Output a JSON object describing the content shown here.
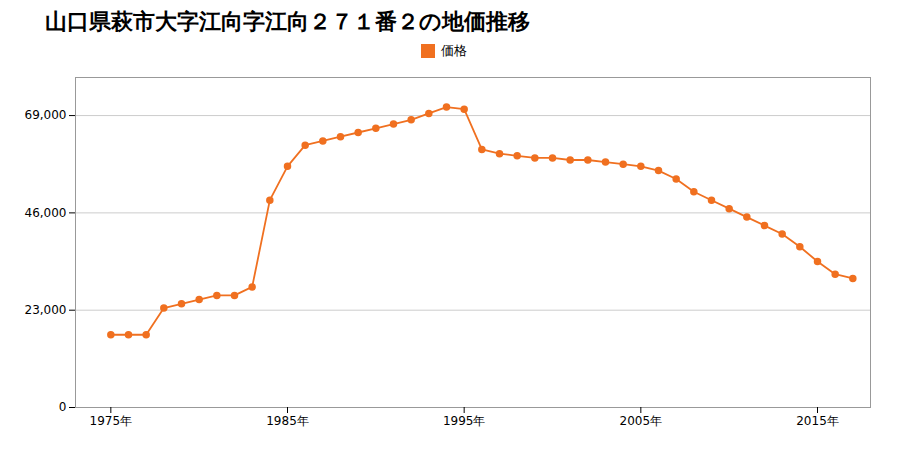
{
  "chart_data": {
    "type": "line",
    "title": "山口県萩市大字江向字江向２７１番２の地価推移",
    "x": [
      1975,
      1976,
      1977,
      1978,
      1979,
      1980,
      1981,
      1982,
      1983,
      1984,
      1985,
      1986,
      1987,
      1988,
      1989,
      1990,
      1991,
      1992,
      1993,
      1994,
      1995,
      1996,
      1997,
      1998,
      1999,
      2000,
      2001,
      2002,
      2003,
      2004,
      2005,
      2006,
      2007,
      2008,
      2009,
      2010,
      2011,
      2012,
      2013,
      2014,
      2015,
      2016,
      2017
    ],
    "series": [
      {
        "name": "価格",
        "color": "#f07020",
        "marker": "circle",
        "values": [
          17200,
          17200,
          17200,
          23500,
          24500,
          25500,
          26500,
          26500,
          28500,
          49000,
          57000,
          62000,
          63000,
          64000,
          65000,
          66000,
          67000,
          68000,
          69500,
          71000,
          70500,
          61000,
          60000,
          59500,
          59000,
          59000,
          58500,
          58500,
          58000,
          57500,
          57000,
          56000,
          54000,
          51000,
          49000,
          47000,
          45000,
          43000,
          41000,
          38000,
          34500,
          31500,
          30500
        ]
      }
    ],
    "xlim": [
      1973,
      2018
    ],
    "xticks": [
      {
        "value": 1975,
        "label": "1975年"
      },
      {
        "value": 1985,
        "label": "1985年"
      },
      {
        "value": 1995,
        "label": "1995年"
      },
      {
        "value": 2005,
        "label": "2005年"
      },
      {
        "value": 2015,
        "label": "2015年"
      }
    ],
    "ylim": [
      0,
      78000
    ],
    "yticks": [
      0,
      {
        "value": 23000,
        "label": "23,000"
      },
      {
        "value": 46000,
        "label": "46,000"
      },
      {
        "value": 69000,
        "label": "69,000"
      }
    ],
    "grid": true,
    "legend": "top"
  }
}
